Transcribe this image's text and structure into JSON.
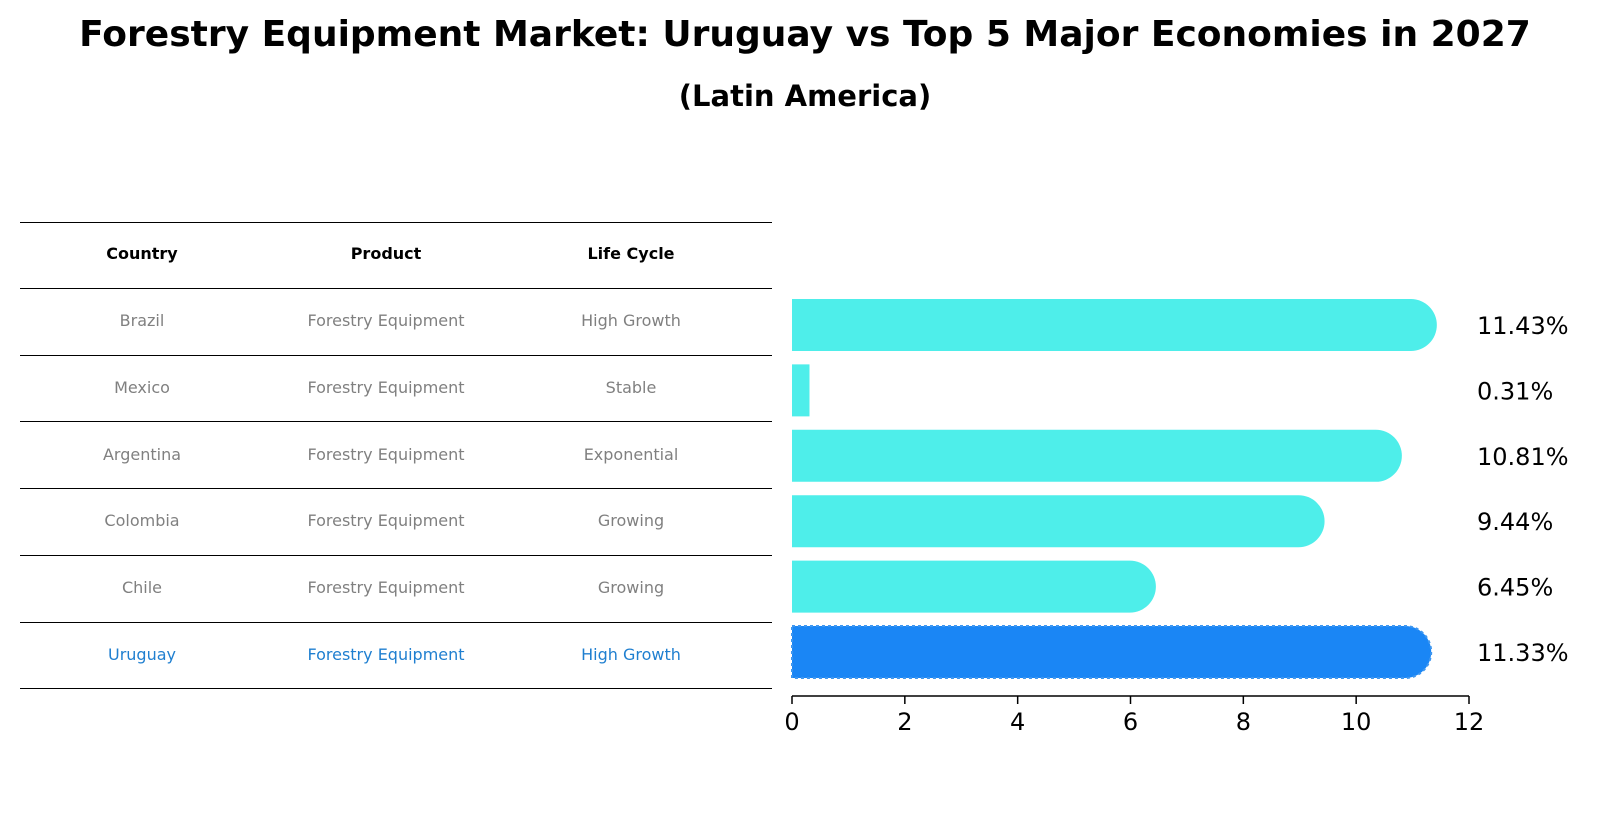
{
  "title": "Forestry Equipment Market: Uruguay vs Top 5 Major Economies in 2027",
  "subtitle": "(Latin America)",
  "table": {
    "headers": [
      "Country",
      "Product",
      "Life Cycle"
    ],
    "rows": [
      {
        "country": "Brazil",
        "product": "Forestry Equipment",
        "life_cycle": "High Growth",
        "highlight": false
      },
      {
        "country": "Mexico",
        "product": "Forestry Equipment",
        "life_cycle": "Stable",
        "highlight": false
      },
      {
        "country": "Argentina",
        "product": "Forestry Equipment",
        "life_cycle": "Exponential",
        "highlight": false
      },
      {
        "country": "Colombia",
        "product": "Forestry Equipment",
        "life_cycle": "Growing",
        "highlight": false
      },
      {
        "country": "Chile",
        "product": "Forestry Equipment",
        "life_cycle": "Growing",
        "highlight": false
      },
      {
        "country": "Uruguay",
        "product": "Forestry Equipment",
        "life_cycle": "High Growth",
        "highlight": true
      }
    ]
  },
  "colors": {
    "bar": "#4eeeea",
    "highlight_bar": "#1a86f5",
    "muted_text": "#808080",
    "highlight_text": "#1f7fd0"
  },
  "chart_data": {
    "type": "bar",
    "orientation": "horizontal",
    "categories": [
      "Brazil",
      "Mexico",
      "Argentina",
      "Colombia",
      "Chile",
      "Uruguay"
    ],
    "values": [
      11.43,
      0.31,
      10.81,
      9.44,
      6.45,
      11.33
    ],
    "value_labels": [
      "11.43%",
      "0.31%",
      "10.81%",
      "9.44%",
      "6.45%",
      "11.33%"
    ],
    "highlight_category": "Uruguay",
    "xlim": [
      0,
      12
    ],
    "xticks": [
      0,
      2,
      4,
      6,
      8,
      10,
      12
    ],
    "xlabel": "",
    "ylabel": ""
  }
}
